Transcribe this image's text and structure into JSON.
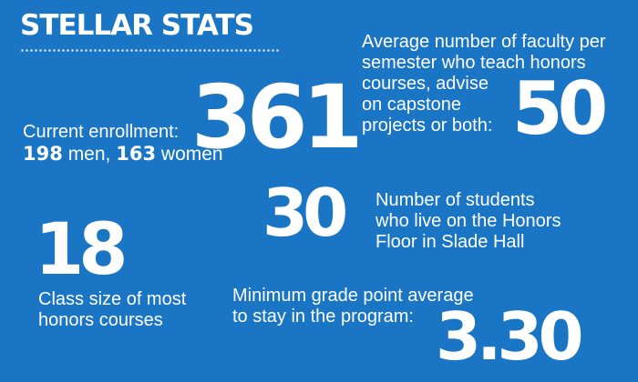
{
  "title": "STELLAR STATS",
  "enrollment": {
    "label": "Current enrollment:",
    "value": "361",
    "men_count": "198",
    "men_label": "men,",
    "women_count": "163",
    "women_label": "women"
  },
  "faculty": {
    "label_lines": [
      "Average number of faculty per",
      "semester who teach honors",
      "courses, advise",
      "on capstone",
      "projects or both:"
    ],
    "value": "50"
  },
  "honors_floor": {
    "value": "30",
    "label_lines": [
      "Number of students",
      "who live on the Honors",
      "Floor in Slade Hall"
    ]
  },
  "class_size": {
    "value": "18",
    "label_lines": [
      "Class size of most",
      "honors courses"
    ]
  },
  "gpa": {
    "label_lines": [
      "Minimum grade point average",
      "to stay in the program:"
    ],
    "value": "3.30"
  }
}
